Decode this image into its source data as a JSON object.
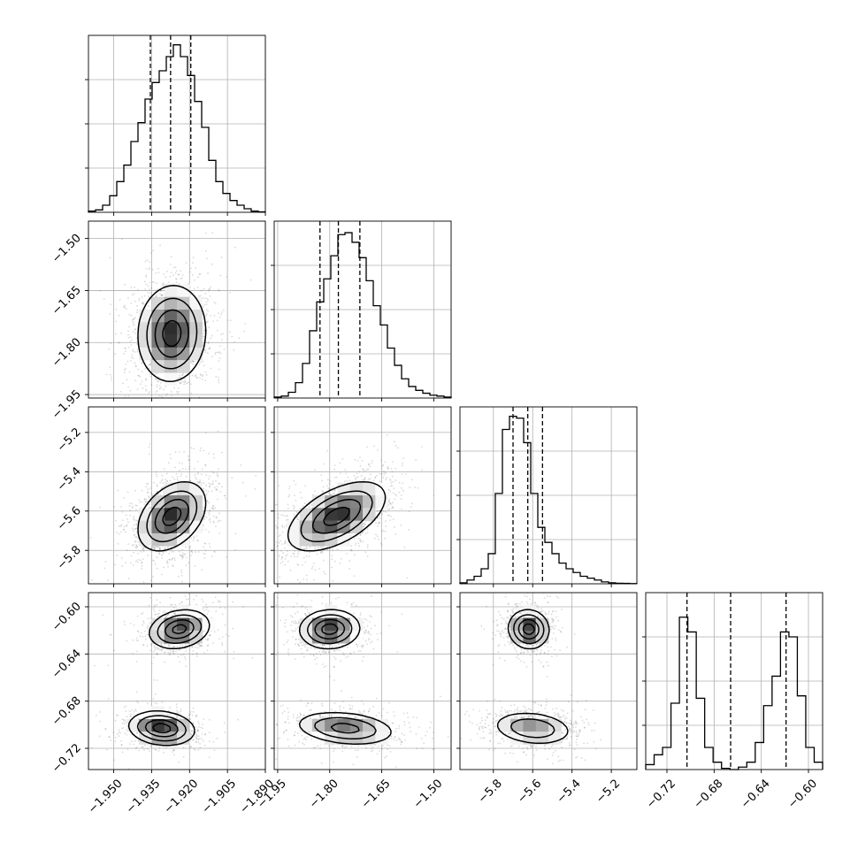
{
  "chart_data": {
    "type": "corner",
    "n_params": 4,
    "grid": true,
    "params": [
      {
        "range": [
          -1.96,
          -1.89
        ],
        "ticks": [
          -1.95,
          -1.935,
          -1.92,
          -1.905,
          -1.89
        ],
        "tick_labels": [
          "−1.950",
          "−1.935",
          "−1.920",
          "−1.905",
          "−1.890"
        ],
        "quantiles": [
          -1.9355,
          -1.9275,
          -1.9195
        ],
        "hist": [
          0.5,
          1,
          3,
          7,
          13,
          20,
          30,
          38,
          48,
          55,
          60,
          66,
          71,
          66,
          58,
          47,
          36,
          22,
          13,
          8,
          5,
          3,
          1.5,
          0.5,
          0.2
        ],
        "hist_ymax": 75
      },
      {
        "range": [
          -1.96,
          -1.45
        ],
        "ticks": [
          -1.95,
          -1.8,
          -1.65,
          -1.5
        ],
        "tick_labels": [
          "−1.95",
          "−1.80",
          "−1.65",
          "−1.50"
        ],
        "quantiles": [
          -1.828,
          -1.775,
          -1.713
        ],
        "hist": [
          0.5,
          1,
          3,
          8,
          18,
          35,
          50,
          62,
          74,
          85,
          86,
          81,
          73,
          61,
          48,
          38,
          26,
          17,
          10,
          6,
          4,
          2.5,
          1.5,
          1,
          0.5
        ],
        "hist_ymax": 92
      },
      {
        "range": [
          -5.97,
          -5.07
        ],
        "ticks": [
          -5.8,
          -5.6,
          -5.4,
          -5.2
        ],
        "tick_labels": [
          "−5.8",
          "−5.6",
          "−5.4",
          "−5.2"
        ],
        "quantiles": [
          -5.7,
          -5.625,
          -5.55
        ],
        "hist": [
          0.5,
          2,
          4,
          8,
          16,
          48,
          82,
          89,
          88,
          75,
          48,
          30,
          22,
          16,
          11,
          8,
          6,
          4,
          3,
          2,
          1,
          0.5,
          0.3,
          0.2,
          0.1
        ],
        "hist_ymax": 94
      },
      {
        "range": [
          -0.738,
          -0.588
        ],
        "ticks": [
          -0.72,
          -0.68,
          -0.64,
          -0.6
        ],
        "tick_labels": [
          "−0.72",
          "−0.68",
          "−0.64",
          "−0.60"
        ],
        "quantiles": [
          -0.703,
          -0.666,
          -0.619
        ],
        "hist": [
          2,
          6,
          9,
          27,
          62,
          56,
          29,
          9,
          3,
          0.5,
          0,
          1,
          3,
          11,
          26,
          38,
          56,
          54,
          30,
          9,
          3
        ],
        "hist_ymax": 72
      }
    ],
    "blobs": {
      "1-0": [
        {
          "mx": -1.927,
          "my": -1.774,
          "sx": 0.0065,
          "sy": 0.067,
          "rho": 0.05,
          "w": 1
        }
      ],
      "2-0": [
        {
          "mx": -1.927,
          "my": -5.627,
          "sx": 0.0065,
          "sy": 0.085,
          "rho": 0.38,
          "w": 1
        }
      ],
      "2-1": [
        {
          "mx": -1.78,
          "my": -5.627,
          "sx": 0.068,
          "sy": 0.085,
          "rho": 0.55,
          "w": 1
        }
      ],
      "3-0": [
        {
          "mx": -1.924,
          "my": -0.619,
          "sx": 0.0058,
          "sy": 0.008,
          "rho": 0.2,
          "w": 0.5
        },
        {
          "mx": -1.931,
          "my": -0.703,
          "sx": 0.0063,
          "sy": 0.007,
          "rho": -0.15,
          "w": 0.5
        }
      ],
      "3-1": [
        {
          "mx": -1.8,
          "my": -0.619,
          "sx": 0.042,
          "sy": 0.008,
          "rho": 0.05,
          "w": 0.5
        },
        {
          "mx": -1.755,
          "my": -0.703,
          "sx": 0.07,
          "sy": 0.007,
          "rho": -0.25,
          "w": 0.5
        }
      ],
      "3-2": [
        {
          "mx": -5.62,
          "my": -0.619,
          "sx": 0.05,
          "sy": 0.008,
          "rho": -0.05,
          "w": 0.5
        },
        {
          "mx": -5.6,
          "my": -0.703,
          "sx": 0.1,
          "sy": 0.007,
          "rho": -0.2,
          "w": 0.5
        }
      ]
    }
  }
}
